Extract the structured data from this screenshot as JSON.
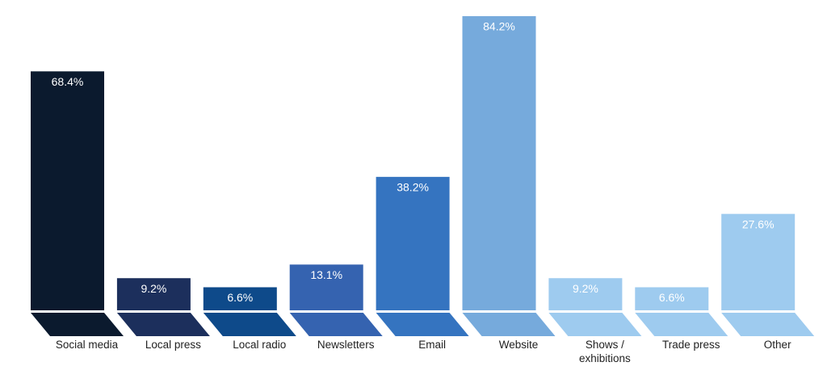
{
  "chart_data": {
    "type": "bar",
    "categories": [
      "Social media",
      "Local press",
      "Local radio",
      "Newsletters",
      "Email",
      "Website",
      "Shows / exhibitions",
      "Trade press",
      "Other"
    ],
    "values": [
      68.4,
      9.2,
      6.6,
      13.1,
      38.2,
      84.2,
      9.2,
      6.6,
      27.6
    ],
    "value_labels": [
      "68.4%",
      "9.2%",
      "6.6%",
      "13.1%",
      "38.2%",
      "84.2%",
      "9.2%",
      "6.6%",
      "27.6%"
    ],
    "colors": [
      "#0b1a2e",
      "#1c2f5c",
      "#0e4a8a",
      "#3563b0",
      "#3574c0",
      "#76aadc",
      "#9ecbef",
      "#9ecbef",
      "#9ecbef"
    ]
  }
}
